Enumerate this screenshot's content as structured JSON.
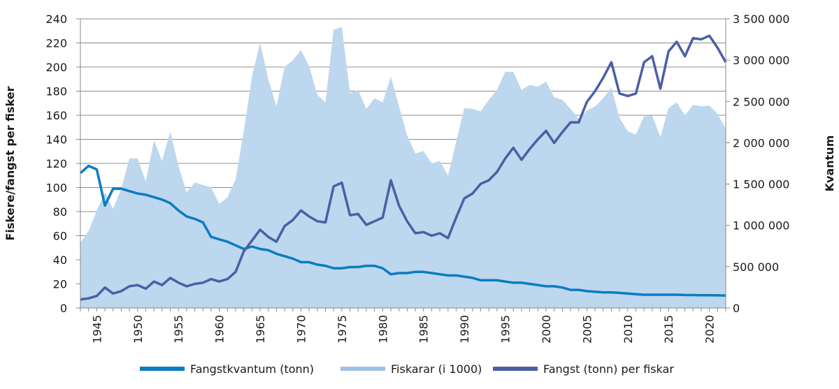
{
  "chart_data": {
    "type": "line+area",
    "title": "",
    "xlabel": "",
    "ylabel_left": "Fiskere/fangst per fisker",
    "ylabel_right": "Kvantum",
    "ylim_left": [
      0,
      240
    ],
    "ylim_right": [
      0,
      3500000
    ],
    "yticks_left": [
      "0",
      "20",
      "40",
      "60",
      "80",
      "100",
      "120",
      "140",
      "160",
      "180",
      "200",
      "220",
      "240"
    ],
    "yticks_right": [
      "0",
      "500 000",
      "1 000 000",
      "1 500 000",
      "2 000 000",
      "2 500 000",
      "3 000 000",
      "3 500 000"
    ],
    "xlim": [
      1943,
      2022
    ],
    "xticks": [
      "1945",
      "1950",
      "1955",
      "1960",
      "1965",
      "1970",
      "1975",
      "1980",
      "1985",
      "1990",
      "1995",
      "2000",
      "2005",
      "2010",
      "2015",
      "2020"
    ],
    "grid": "horizontal",
    "legend_position": "bottom",
    "x_start_year": 1943,
    "series": [
      {
        "name": "Fiskarar (i 1000)",
        "kind": "area",
        "axis": "right",
        "color": "#bdd7ee",
        "legend_color": "#9dc3e6",
        "values": [
          790000,
          930000,
          1180000,
          1400000,
          1200000,
          1440000,
          1810000,
          1810000,
          1530000,
          2030000,
          1780000,
          2140000,
          1720000,
          1400000,
          1520000,
          1490000,
          1460000,
          1260000,
          1340000,
          1560000,
          2140000,
          2800000,
          3210000,
          2770000,
          2440000,
          2920000,
          3000000,
          3120000,
          2930000,
          2580000,
          2490000,
          3370000,
          3400000,
          2600000,
          2640000,
          2410000,
          2540000,
          2490000,
          2800000,
          2440000,
          2090000,
          1870000,
          1900000,
          1750000,
          1780000,
          1600000,
          2010000,
          2420000,
          2410000,
          2380000,
          2520000,
          2640000,
          2860000,
          2860000,
          2640000,
          2700000,
          2680000,
          2740000,
          2550000,
          2520000,
          2410000,
          2290000,
          2390000,
          2440000,
          2540000,
          2670000,
          2300000,
          2140000,
          2100000,
          2320000,
          2330000,
          2070000,
          2420000,
          2490000,
          2330000,
          2460000,
          2440000,
          2450000,
          2350000,
          2170000
        ]
      },
      {
        "name": "Fangstkvantum (tonn)",
        "kind": "line",
        "axis": "left",
        "color": "#0b7cc1",
        "values": [
          112,
          118,
          115,
          85,
          99,
          99,
          97,
          95,
          94,
          92,
          90,
          87,
          81,
          76,
          74,
          71,
          59,
          57,
          55,
          52,
          49,
          51,
          49,
          48,
          45,
          43,
          41,
          38,
          38,
          36,
          35,
          33,
          33,
          34,
          34,
          35,
          35,
          33,
          28,
          29,
          29,
          30,
          30,
          29,
          28,
          27,
          27,
          26,
          25,
          23,
          23,
          23,
          22,
          21,
          21,
          20,
          19,
          18,
          18,
          17,
          15,
          15,
          14,
          13.5,
          13,
          13,
          12.5,
          12,
          11.5,
          11,
          11,
          11,
          11,
          11,
          10.8,
          10.7,
          10.6,
          10.6,
          10.5,
          10.3
        ]
      },
      {
        "name": "Fangst (tonn) per fiskar",
        "kind": "line",
        "axis": "left",
        "color": "#4a5fa6",
        "values": [
          7,
          8,
          10,
          17,
          12,
          14,
          18,
          19,
          16,
          22,
          19,
          25,
          21,
          18,
          20,
          21,
          24,
          22,
          24,
          30,
          47,
          56,
          65,
          59,
          55,
          68,
          73,
          81,
          76,
          72,
          71,
          101,
          104,
          77,
          78,
          69,
          72,
          75,
          106,
          85,
          72,
          62,
          63,
          60,
          62,
          58,
          75,
          91,
          95,
          103,
          106,
          113,
          124,
          133,
          123,
          132,
          140,
          147,
          137,
          146,
          154,
          154,
          171,
          180,
          191,
          204,
          178,
          176,
          178,
          204,
          209,
          182,
          213,
          221,
          209,
          224,
          223,
          226,
          216,
          204
        ]
      }
    ],
    "legend": [
      {
        "label": "Fangstkvantum (tonn)",
        "color": "#0b7cc1",
        "swatch": "line"
      },
      {
        "label": "Fiskarar (i 1000)",
        "color": "#9dc3e6",
        "swatch": "line"
      },
      {
        "label": "Fangst (tonn) per fiskar",
        "color": "#4a5fa6",
        "swatch": "line"
      }
    ]
  }
}
